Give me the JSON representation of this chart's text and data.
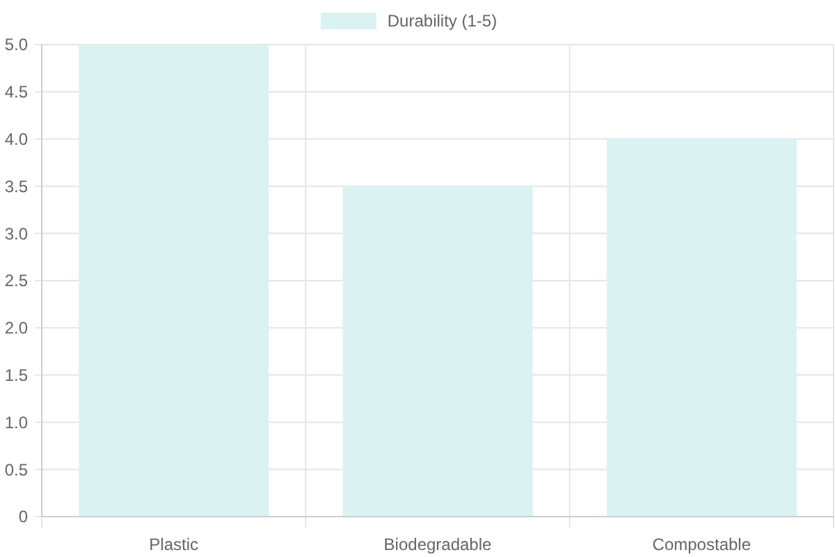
{
  "chart_data": {
    "type": "bar",
    "categories": [
      "Plastic",
      "Biodegradable",
      "Compostable"
    ],
    "series": [
      {
        "name": "Durability (1-5)",
        "color": "#dbf2f2",
        "values": [
          5,
          3.5,
          4
        ]
      }
    ],
    "ylim": [
      0,
      5
    ],
    "yticks": [
      0,
      0.5,
      {
        "value": 1,
        "label": "1.0"
      },
      1.5,
      {
        "value": 2,
        "label": "2.0"
      },
      2.5,
      {
        "value": 3,
        "label": "3.0"
      },
      3.5,
      {
        "value": 4,
        "label": "4.0"
      },
      4.5,
      {
        "value": 5,
        "label": "5.0"
      }
    ],
    "grid": true,
    "legend": "top"
  }
}
